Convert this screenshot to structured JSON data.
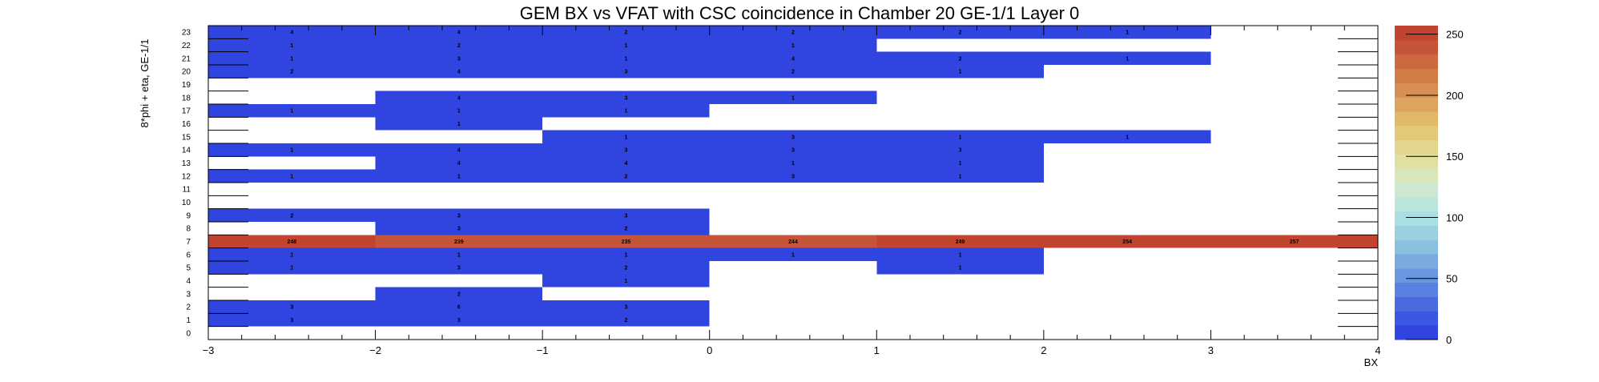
{
  "chart_data": {
    "type": "heatmap",
    "title": "GEM BX vs VFAT with CSC coincidence in Chamber 20 GE-1/1 Layer 0",
    "xlabel": "BX",
    "ylabel": "8*phi + eta, GE-1/1",
    "xlim": [
      -3,
      4
    ],
    "ylim": [
      0,
      24
    ],
    "x_ticks": [
      "−3",
      "−2",
      "−1",
      "0",
      "1",
      "2",
      "3",
      "4"
    ],
    "y_ticks": [
      "0",
      "1",
      "2",
      "3",
      "4",
      "5",
      "6",
      "7",
      "8",
      "9",
      "10",
      "11",
      "12",
      "13",
      "14",
      "15",
      "16",
      "17",
      "18",
      "19",
      "20",
      "21",
      "22",
      "23"
    ],
    "x_bins": [
      -2.5,
      -1.5,
      -0.5,
      0.5,
      1.5,
      2.5,
      3.5
    ],
    "rows": [
      {
        "y": 1,
        "values": [
          3,
          3,
          2,
          null,
          null,
          null,
          null
        ]
      },
      {
        "y": 2,
        "values": [
          3,
          6,
          3,
          null,
          null,
          null,
          null
        ]
      },
      {
        "y": 3,
        "values": [
          null,
          2,
          null,
          null,
          null,
          null,
          null
        ]
      },
      {
        "y": 4,
        "values": [
          null,
          null,
          1,
          null,
          null,
          null,
          null
        ]
      },
      {
        "y": 5,
        "values": [
          1,
          3,
          2,
          null,
          1,
          null,
          null
        ]
      },
      {
        "y": 6,
        "values": [
          1,
          1,
          1,
          1,
          1,
          null,
          null
        ]
      },
      {
        "y": 7,
        "values": [
          248,
          239,
          235,
          244,
          249,
          254,
          257
        ]
      },
      {
        "y": 8,
        "values": [
          null,
          3,
          2,
          null,
          null,
          null,
          null
        ]
      },
      {
        "y": 9,
        "values": [
          2,
          3,
          3,
          null,
          null,
          null,
          null
        ]
      },
      {
        "y": 12,
        "values": [
          1,
          1,
          2,
          3,
          1,
          null,
          null
        ]
      },
      {
        "y": 13,
        "values": [
          null,
          4,
          4,
          1,
          1,
          null,
          null
        ]
      },
      {
        "y": 14,
        "values": [
          1,
          4,
          3,
          3,
          3,
          null,
          null
        ]
      },
      {
        "y": 15,
        "values": [
          null,
          null,
          1,
          3,
          1,
          1,
          null
        ]
      },
      {
        "y": 16,
        "values": [
          null,
          1,
          null,
          null,
          null,
          null,
          null
        ]
      },
      {
        "y": 17,
        "values": [
          1,
          1,
          1,
          null,
          null,
          null,
          null
        ]
      },
      {
        "y": 18,
        "values": [
          null,
          4,
          3,
          1,
          null,
          null,
          null
        ]
      },
      {
        "y": 20,
        "values": [
          2,
          4,
          3,
          2,
          1,
          null,
          null
        ]
      },
      {
        "y": 21,
        "values": [
          1,
          3,
          1,
          4,
          2,
          1,
          null
        ]
      },
      {
        "y": 22,
        "values": [
          1,
          2,
          1,
          1,
          null,
          null,
          null
        ]
      },
      {
        "y": 23,
        "values": [
          4,
          4,
          2,
          2,
          2,
          1,
          null
        ]
      }
    ],
    "colorbar": {
      "range": [
        0,
        257
      ],
      "ticks": [
        0,
        50,
        100,
        150,
        200,
        250
      ],
      "tick_labels": [
        "0",
        "50",
        "100",
        "150",
        "200",
        "250"
      ],
      "colors": [
        "#3044e0",
        "#3a58e2",
        "#4a6ae0",
        "#5a80e0",
        "#6a96e0",
        "#7aaae0",
        "#8ac0e0",
        "#9ad0e0",
        "#aadee0",
        "#bce6dc",
        "#cce8d2",
        "#d8e6bc",
        "#e0e0a2",
        "#e2d68c",
        "#e2c878",
        "#e0b868",
        "#dca45c",
        "#d89052",
        "#d27c48",
        "#cc6840",
        "#c65438",
        "#c04430"
      ]
    }
  }
}
